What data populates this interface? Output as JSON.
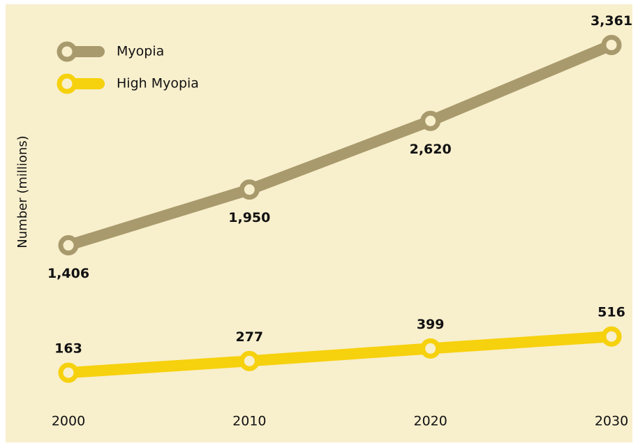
{
  "chart_data": {
    "type": "line",
    "ylabel": "Number (millions)",
    "x": [
      2000,
      2010,
      2020,
      2030
    ],
    "xlim": [
      2000,
      2030
    ],
    "xticks": [
      2000,
      2010,
      2020,
      2030
    ],
    "ylim": [
      0,
      3800
    ],
    "legend": "top-left",
    "series": [
      {
        "name": "Myopia",
        "color": "#a89a6c",
        "values": [
          1406,
          1950,
          2620,
          3361
        ],
        "value_labels": [
          "1,406",
          "1,950",
          "2,620",
          "3,361"
        ]
      },
      {
        "name": "High Myopia",
        "color": "#f6d10d",
        "values": [
          163,
          277,
          399,
          516
        ]
      }
    ]
  }
}
